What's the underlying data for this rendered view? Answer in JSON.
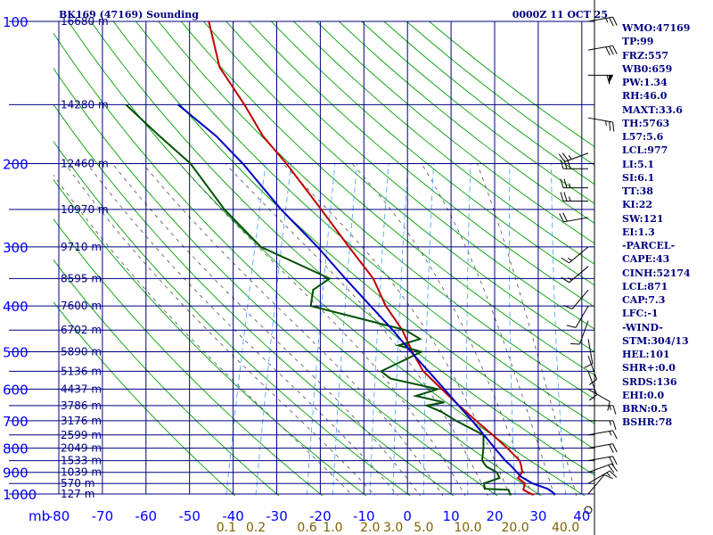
{
  "header": {
    "station_title": "BK169 (47169) Sounding",
    "valid_time": "0000Z 11 OCT 25"
  },
  "indices": [
    "WMO:47169",
    "TP:99",
    "FRZ:557",
    "WB0:659",
    "PW:1.34",
    "RH:46.0",
    "MAXT:33.6",
    "TH:5763",
    "L57:5.6",
    "LCL:977",
    "LI:5.1",
    "SI:6.1",
    "TT:38",
    "KI:22",
    "SW:121",
    "EI:1.3",
    "-PARCEL-",
    "CAPE:43",
    "CINH:52174",
    "LCL:871",
    "CAP:7.3",
    "LFC:-1",
    "-WIND-",
    "STM:304/13",
    "HEL:101",
    "SHR+:0.0",
    "SRDS:136",
    "EHI:0.0",
    "BRN:0.5",
    "BSHR:78"
  ],
  "colors": {
    "grid": "#000080",
    "axis_text": "#0000ff",
    "dry_adiabat": "#00a000",
    "moist_adiabat": "#505050",
    "mixing_ratio": "#40a0ff",
    "temperature": "#c00000",
    "dewpoint": "#005000",
    "parcel": "#0000c0",
    "mixing_label": "#806000"
  },
  "chart_data": {
    "type": "line",
    "title": "BK169 (47169) Sounding",
    "subtitle": "0000Z 11 OCT 25",
    "xlabel": "",
    "ylabel": "mb",
    "y_unit_label": "mb",
    "xlim": [
      -80,
      40
    ],
    "ylim": [
      1000,
      100
    ],
    "y_scale": "log",
    "pressure_ticks": [
      "100",
      "200",
      "300",
      "400",
      "500",
      "600",
      "700",
      "800",
      "900",
      "1000"
    ],
    "temperature_ticks": [
      "-80",
      "-70",
      "-60",
      "-50",
      "-40",
      "-30",
      "-20",
      "-10",
      "0",
      "10",
      "20",
      "30",
      "40"
    ],
    "mixing_ratio_ticks": [
      "0.1",
      "0.2",
      "0.6",
      "1.0",
      "2.0",
      "3.0",
      "5.0",
      "10.0",
      "20.0",
      "40.0"
    ],
    "mixing_ratio_values": [
      0.1,
      0.2,
      0.6,
      1.0,
      2.0,
      3.0,
      5.0,
      10.0,
      20.0,
      40.0
    ],
    "height_levels": [
      {
        "p": 100,
        "label": "16680 m"
      },
      {
        "p": 150,
        "label": "14280 m"
      },
      {
        "p": 200,
        "label": "12460 m"
      },
      {
        "p": 250,
        "label": "10970 m"
      },
      {
        "p": 300,
        "label": "9710 m"
      },
      {
        "p": 350,
        "label": "8595 m"
      },
      {
        "p": 400,
        "label": "7600 m"
      },
      {
        "p": 450,
        "label": "6702 m"
      },
      {
        "p": 500,
        "label": "5890 m"
      },
      {
        "p": 550,
        "label": "5136 m"
      },
      {
        "p": 600,
        "label": "4437 m"
      },
      {
        "p": 650,
        "label": "3786 m"
      },
      {
        "p": 700,
        "label": "3176 m"
      },
      {
        "p": 750,
        "label": "2599 m"
      },
      {
        "p": 800,
        "label": "2049 m"
      },
      {
        "p": 850,
        "label": "1533 m"
      },
      {
        "p": 900,
        "label": "1039 m"
      },
      {
        "p": 950,
        "label": "570 m"
      },
      {
        "p": 1000,
        "label": "127 m"
      }
    ],
    "series": [
      {
        "name": "temperature",
        "points": [
          [
            1002,
            29.2
          ],
          [
            1000,
            28.4
          ],
          [
            980,
            26.3
          ],
          [
            950,
            26.2
          ],
          [
            925,
            24.2
          ],
          [
            900,
            24.8
          ],
          [
            875,
            24.2
          ],
          [
            850,
            23.4
          ],
          [
            800,
            19.7
          ],
          [
            750,
            15.4
          ],
          [
            700,
            10.6
          ],
          [
            650,
            5.6
          ],
          [
            600,
            0.5
          ],
          [
            550,
            -5.0
          ],
          [
            500,
            -8.9
          ],
          [
            450,
            -12.7
          ],
          [
            400,
            -18.2
          ],
          [
            350,
            -23.0
          ],
          [
            300,
            -30.8
          ],
          [
            250,
            -39.8
          ],
          [
            200,
            -51.0
          ],
          [
            175,
            -58.3
          ],
          [
            150,
            -64.8
          ],
          [
            125,
            -73.1
          ],
          [
            100,
            -78.8
          ]
        ]
      },
      {
        "name": "dewpoint",
        "points": [
          [
            1002,
            24.0
          ],
          [
            1000,
            23.5
          ],
          [
            980,
            22.9
          ],
          [
            975,
            17.4
          ],
          [
            950,
            16.8
          ],
          [
            925,
            20.0
          ],
          [
            900,
            19.0
          ],
          [
            875,
            16.2
          ],
          [
            850,
            14.8
          ],
          [
            800,
            14.2
          ],
          [
            750,
            13.3
          ],
          [
            700,
            6.0
          ],
          [
            670,
            2.0
          ],
          [
            650,
            -1.8
          ],
          [
            640,
            2.0
          ],
          [
            620,
            -5.0
          ],
          [
            600,
            -0.4
          ],
          [
            570,
            -12.0
          ],
          [
            550,
            -14.7
          ],
          [
            520,
            -10.0
          ],
          [
            500,
            -6.8
          ],
          [
            485,
            -12.5
          ],
          [
            470,
            -8.0
          ],
          [
            450,
            -12.0
          ],
          [
            400,
            -35.4
          ],
          [
            370,
            -36.0
          ],
          [
            350,
            -33.0
          ],
          [
            300,
            -51.0
          ],
          [
            250,
            -62.0
          ],
          [
            200,
            -73.0
          ],
          [
            175,
            -82.0
          ],
          [
            150,
            -92.0
          ]
        ]
      },
      {
        "name": "parcel",
        "points": [
          [
            1002,
            34.0
          ],
          [
            975,
            31.8
          ],
          [
            950,
            28.0
          ],
          [
            920,
            24.9
          ],
          [
            871,
            21.7
          ],
          [
            850,
            20.1
          ],
          [
            800,
            16.8
          ],
          [
            750,
            13.4
          ],
          [
            700,
            9.7
          ],
          [
            650,
            5.5
          ],
          [
            600,
            1.1
          ],
          [
            550,
            -3.8
          ],
          [
            500,
            -9.2
          ],
          [
            450,
            -14.9
          ],
          [
            400,
            -21.7
          ],
          [
            350,
            -29.4
          ],
          [
            300,
            -38.0
          ],
          [
            250,
            -49.0
          ],
          [
            200,
            -61.0
          ],
          [
            175,
            -69.0
          ],
          [
            150,
            -80.0
          ]
        ]
      }
    ],
    "wind_barbs": [
      {
        "p": 100,
        "dir": 80,
        "spd": 25
      },
      {
        "p": 115,
        "dir": 80,
        "spd": 30
      },
      {
        "p": 130,
        "dir": 90,
        "spd": 60
      },
      {
        "p": 160,
        "dir": 100,
        "spd": 25
      },
      {
        "p": 190,
        "dir": 250,
        "spd": 25
      },
      {
        "p": 205,
        "dir": 270,
        "spd": 30
      },
      {
        "p": 225,
        "dir": 270,
        "spd": 25
      },
      {
        "p": 240,
        "dir": 270,
        "spd": 25
      },
      {
        "p": 260,
        "dir": 260,
        "spd": 20
      },
      {
        "p": 300,
        "dir": 230,
        "spd": 15
      },
      {
        "p": 330,
        "dir": 230,
        "spd": 15
      },
      {
        "p": 370,
        "dir": 220,
        "spd": 10
      },
      {
        "p": 400,
        "dir": 210,
        "spd": 10
      },
      {
        "p": 430,
        "dir": 200,
        "spd": 10
      },
      {
        "p": 470,
        "dir": 170,
        "spd": 10
      },
      {
        "p": 510,
        "dir": 160,
        "spd": 10
      },
      {
        "p": 550,
        "dir": 160,
        "spd": 10
      },
      {
        "p": 600,
        "dir": 120,
        "spd": 10
      },
      {
        "p": 650,
        "dir": 90,
        "spd": 15
      },
      {
        "p": 700,
        "dir": 90,
        "spd": 15
      },
      {
        "p": 750,
        "dir": 80,
        "spd": 15
      },
      {
        "p": 800,
        "dir": 80,
        "spd": 20
      },
      {
        "p": 850,
        "dir": 80,
        "spd": 20
      },
      {
        "p": 900,
        "dir": 70,
        "spd": 20
      },
      {
        "p": 950,
        "dir": 60,
        "spd": 15
      },
      {
        "p": 1000,
        "dir": 40,
        "spd": 10
      }
    ],
    "grid": true,
    "legend": "none"
  }
}
